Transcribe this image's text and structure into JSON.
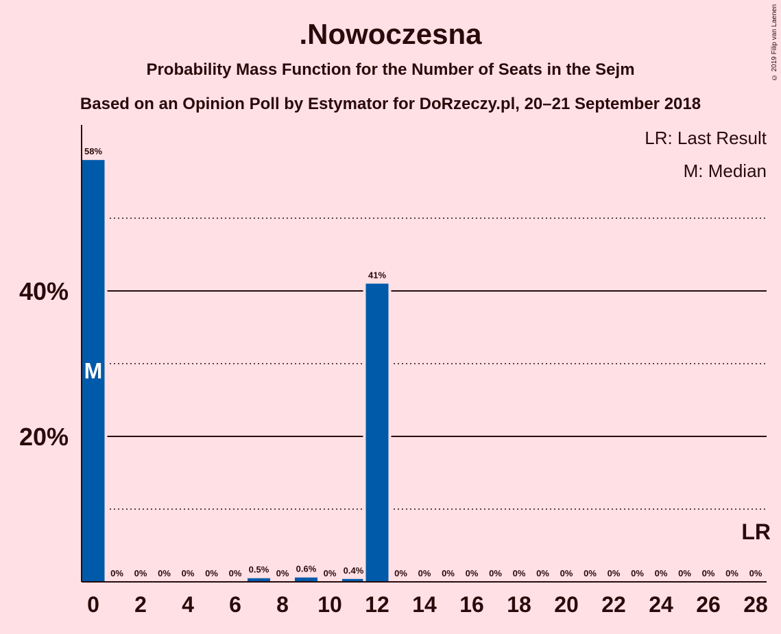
{
  "title": ".Nowoczesna",
  "subtitle": "Probability Mass Function for the Number of Seats in the Sejm",
  "subtitle2": "Based on an Opinion Poll by Estymator for DoRzeczy.pl, 20–21 September 2018",
  "copyright": "© 2019 Filip van Laenen",
  "legend": {
    "lr": "LR: Last Result",
    "median": "M: Median"
  },
  "markers": {
    "median_label": "M",
    "median_seat": 0,
    "lr_label": "LR",
    "lr_seat": 28
  },
  "colors": {
    "background": "#FFE1E5",
    "bar": "#005AAA",
    "text": "#2a0a0a"
  },
  "chart_data": {
    "type": "bar",
    "x": [
      0,
      1,
      2,
      3,
      4,
      5,
      6,
      7,
      8,
      9,
      10,
      11,
      12,
      13,
      14,
      15,
      16,
      17,
      18,
      19,
      20,
      21,
      22,
      23,
      24,
      25,
      26,
      27,
      28
    ],
    "values": [
      58,
      0,
      0,
      0,
      0,
      0,
      0,
      0.5,
      0,
      0.6,
      0,
      0.4,
      41,
      0,
      0,
      0,
      0,
      0,
      0,
      0,
      0,
      0,
      0,
      0,
      0,
      0,
      0,
      0,
      0
    ],
    "value_labels": [
      "58%",
      "0%",
      "0%",
      "0%",
      "0%",
      "0%",
      "0%",
      "0.5%",
      "0%",
      "0.6%",
      "0%",
      "0.4%",
      "41%",
      "0%",
      "0%",
      "0%",
      "0%",
      "0%",
      "0%",
      "0%",
      "0%",
      "0%",
      "0%",
      "0%",
      "0%",
      "0%",
      "0%",
      "0%",
      "0%"
    ],
    "xticks": [
      0,
      2,
      4,
      6,
      8,
      10,
      12,
      14,
      16,
      18,
      20,
      22,
      24,
      26,
      28
    ],
    "xtick_labels": [
      "0",
      "2",
      "4",
      "6",
      "8",
      "10",
      "12",
      "14",
      "16",
      "18",
      "20",
      "22",
      "24",
      "26",
      "28"
    ],
    "yticks": [
      20,
      40
    ],
    "ytick_labels": [
      "20%",
      "40%"
    ],
    "minor_gridlines": [
      10,
      30,
      50
    ],
    "ylim": [
      0,
      63
    ],
    "xlabel": "",
    "ylabel": "",
    "legend_position": "top-right"
  }
}
